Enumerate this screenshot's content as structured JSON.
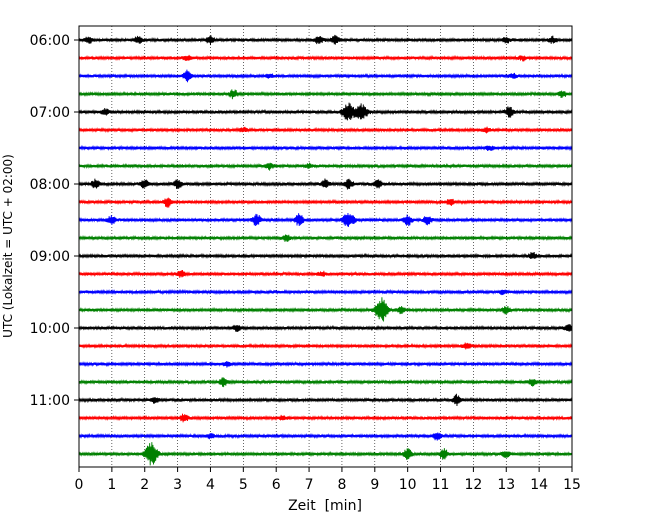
{
  "chart_data": {
    "type": "line",
    "title": "",
    "xlabel": "Zeit  [min]",
    "ylabel": "UTC (Lokalzeit = UTC + 02:00)",
    "xlim": [
      0,
      15
    ],
    "x_ticks": [
      0,
      1,
      2,
      3,
      4,
      5,
      6,
      7,
      8,
      9,
      10,
      11,
      12,
      13,
      14,
      15
    ],
    "x_tick_labels": [
      "0",
      "1",
      "2",
      "3",
      "4",
      "5",
      "6",
      "7",
      "8",
      "9",
      "10",
      "11",
      "12",
      "13",
      "14",
      "15"
    ],
    "y_tick_labels": [
      "06:00",
      "07:00",
      "08:00",
      "09:00",
      "10:00",
      "11:00"
    ],
    "y_tick_rows": [
      0,
      4,
      8,
      12,
      16,
      20
    ],
    "row_interval_minutes": 15,
    "rows": 24,
    "start_time": "06:00",
    "colors": [
      "#000000",
      "#ff0000",
      "#0000ff",
      "#008000"
    ],
    "grid": "vertical dotted lines at each minute",
    "events": [
      {
        "row": 0,
        "x": 0.3,
        "amp": 3
      },
      {
        "row": 0,
        "x": 1.8,
        "amp": 3
      },
      {
        "row": 0,
        "x": 4.0,
        "amp": 4
      },
      {
        "row": 0,
        "x": 7.3,
        "amp": 4
      },
      {
        "row": 0,
        "x": 7.8,
        "amp": 4
      },
      {
        "row": 0,
        "x": 13.0,
        "amp": 3
      },
      {
        "row": 0,
        "x": 14.4,
        "amp": 3
      },
      {
        "row": 1,
        "x": 3.3,
        "amp": 2
      },
      {
        "row": 1,
        "x": 13.5,
        "amp": 2
      },
      {
        "row": 2,
        "x": 3.3,
        "amp": 5
      },
      {
        "row": 2,
        "x": 5.8,
        "amp": 2
      },
      {
        "row": 2,
        "x": 13.2,
        "amp": 2
      },
      {
        "row": 3,
        "x": 4.7,
        "amp": 4
      },
      {
        "row": 3,
        "x": 14.7,
        "amp": 3
      },
      {
        "row": 4,
        "x": 8.2,
        "amp": 9
      },
      {
        "row": 4,
        "x": 8.6,
        "amp": 7
      },
      {
        "row": 4,
        "x": 13.1,
        "amp": 5
      },
      {
        "row": 4,
        "x": 0.8,
        "amp": 3
      },
      {
        "row": 5,
        "x": 5.0,
        "amp": 2
      },
      {
        "row": 5,
        "x": 12.4,
        "amp": 2
      },
      {
        "row": 6,
        "x": 12.5,
        "amp": 2
      },
      {
        "row": 7,
        "x": 5.8,
        "amp": 3
      },
      {
        "row": 7,
        "x": 7.0,
        "amp": 2
      },
      {
        "row": 8,
        "x": 2.0,
        "amp": 5
      },
      {
        "row": 8,
        "x": 3.0,
        "amp": 4
      },
      {
        "row": 8,
        "x": 7.5,
        "amp": 4
      },
      {
        "row": 8,
        "x": 8.2,
        "amp": 5
      },
      {
        "row": 8,
        "x": 9.1,
        "amp": 4
      },
      {
        "row": 8,
        "x": 0.5,
        "amp": 4
      },
      {
        "row": 9,
        "x": 2.7,
        "amp": 5
      },
      {
        "row": 9,
        "x": 11.3,
        "amp": 3
      },
      {
        "row": 10,
        "x": 1.0,
        "amp": 4
      },
      {
        "row": 10,
        "x": 5.4,
        "amp": 6
      },
      {
        "row": 10,
        "x": 6.7,
        "amp": 6
      },
      {
        "row": 10,
        "x": 8.2,
        "amp": 7
      },
      {
        "row": 10,
        "x": 10.0,
        "amp": 5
      },
      {
        "row": 10,
        "x": 10.6,
        "amp": 4
      },
      {
        "row": 11,
        "x": 6.3,
        "amp": 3
      },
      {
        "row": 12,
        "x": 13.8,
        "amp": 3
      },
      {
        "row": 13,
        "x": 3.1,
        "amp": 3
      },
      {
        "row": 13,
        "x": 7.4,
        "amp": 2
      },
      {
        "row": 14,
        "x": 12.9,
        "amp": 2
      },
      {
        "row": 15,
        "x": 9.2,
        "amp": 12
      },
      {
        "row": 15,
        "x": 9.8,
        "amp": 3
      },
      {
        "row": 15,
        "x": 13.0,
        "amp": 3
      },
      {
        "row": 16,
        "x": 4.8,
        "amp": 3
      },
      {
        "row": 16,
        "x": 14.9,
        "amp": 3
      },
      {
        "row": 17,
        "x": 11.8,
        "amp": 3
      },
      {
        "row": 18,
        "x": 4.5,
        "amp": 2
      },
      {
        "row": 19,
        "x": 4.4,
        "amp": 4
      },
      {
        "row": 19,
        "x": 13.8,
        "amp": 3
      },
      {
        "row": 20,
        "x": 11.5,
        "amp": 5
      },
      {
        "row": 20,
        "x": 2.3,
        "amp": 3
      },
      {
        "row": 21,
        "x": 3.2,
        "amp": 4
      },
      {
        "row": 21,
        "x": 6.2,
        "amp": 2
      },
      {
        "row": 22,
        "x": 10.9,
        "amp": 4
      },
      {
        "row": 22,
        "x": 4.0,
        "amp": 2
      },
      {
        "row": 23,
        "x": 2.2,
        "amp": 11
      },
      {
        "row": 23,
        "x": 10.0,
        "amp": 5
      },
      {
        "row": 23,
        "x": 11.1,
        "amp": 5
      },
      {
        "row": 23,
        "x": 13.0,
        "amp": 3
      }
    ]
  }
}
